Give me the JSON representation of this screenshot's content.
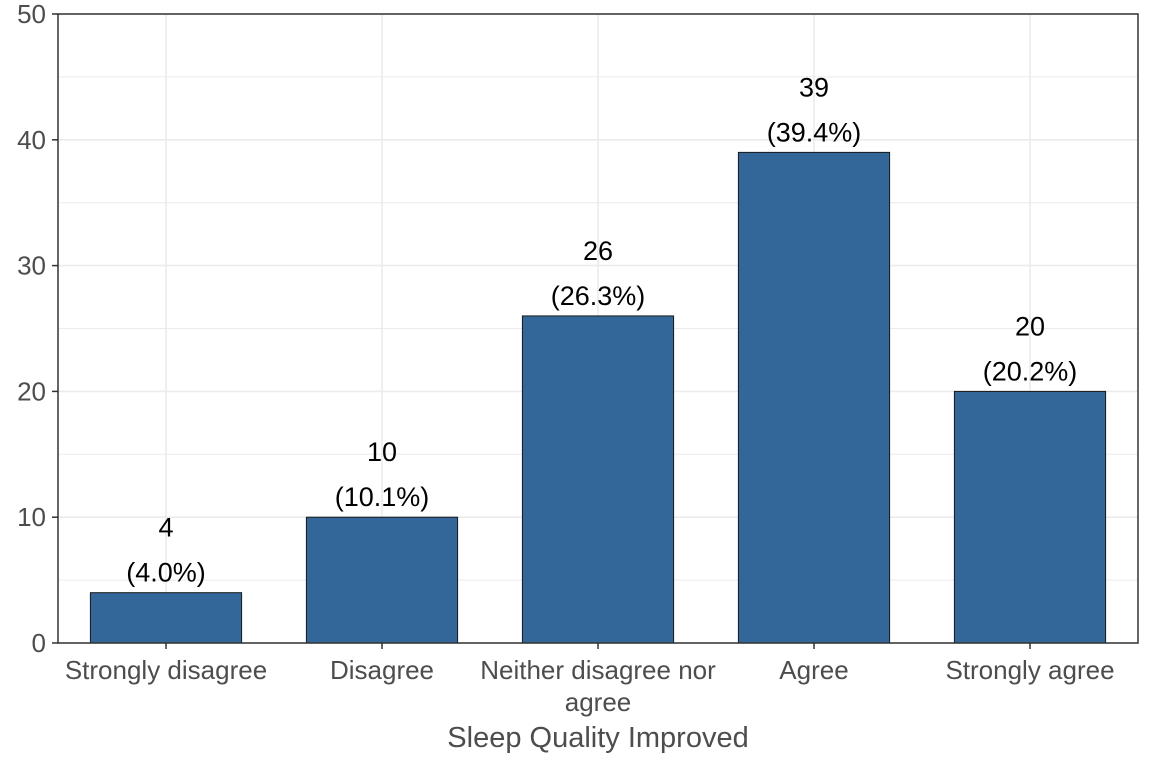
{
  "chart_data": {
    "type": "bar",
    "categories": [
      "Strongly disagree",
      "Disagree",
      "Neither disagree nor agree",
      "Agree",
      "Strongly agree"
    ],
    "category_lines": [
      [
        "Strongly disagree"
      ],
      [
        "Disagree"
      ],
      [
        "Neither disagree nor",
        "agree"
      ],
      [
        "Agree"
      ],
      [
        "Strongly agree"
      ]
    ],
    "values": [
      4,
      10,
      26,
      39,
      20
    ],
    "value_labels": [
      "4",
      "10",
      "26",
      "39",
      "20"
    ],
    "percent_labels": [
      "(4.0%)",
      "(10.1%)",
      "(26.3%)",
      "(39.4%)",
      "(20.2%)"
    ],
    "xlabel": "Sleep Quality Improved",
    "ylabel": "",
    "ylim": [
      0,
      50
    ],
    "yticks": [
      0,
      10,
      20,
      30,
      40,
      50
    ],
    "grid": true,
    "bar_color": "#336699",
    "bar_edge_color": "#1a1a1a",
    "grid_color": "#ebebeb",
    "axis_color": "#333333"
  }
}
